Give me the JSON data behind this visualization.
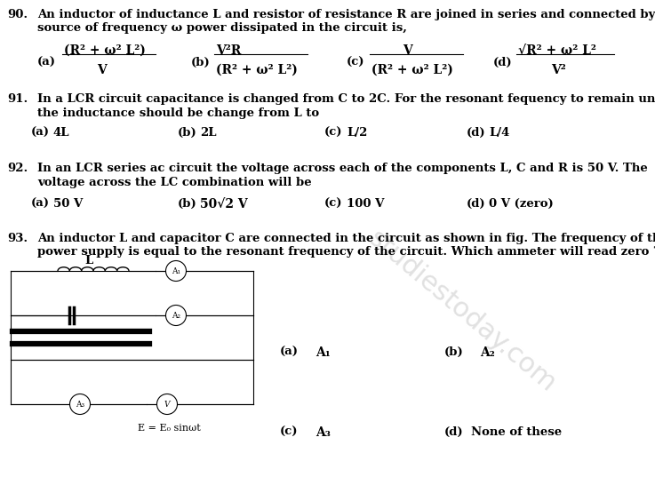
{
  "bg_color": "#ffffff",
  "text_color": "#000000",
  "q90_num": "90.",
  "q90_text1": "An inductor of inductance L and resistor of resistance R are joined in series and connected by a",
  "q90_text2": "source of frequency ω power dissipated in the circuit is,",
  "q91_num": "91.",
  "q91_text1": "In a LCR circuit capacitance is changed from C to 2C. For the resonant fequency to remain unchanged,",
  "q91_text2": "the inductance should be change from L to",
  "q92_num": "92.",
  "q92_text1": "In an LCR series ac circuit the voltage across each of the components L, C and R is 50 V. The",
  "q92_text2": "voltage across the LC combination will be",
  "q93_num": "93.",
  "q93_text1": "An inductor L and capacitor C are connected in the circuit as shown in fig. The frequency of the",
  "q93_text2": "power supply is equal to the resonant frequency of the circuit. Which ammeter will read zero ?",
  "font_size": 9.5,
  "font_size_math": 10.0
}
